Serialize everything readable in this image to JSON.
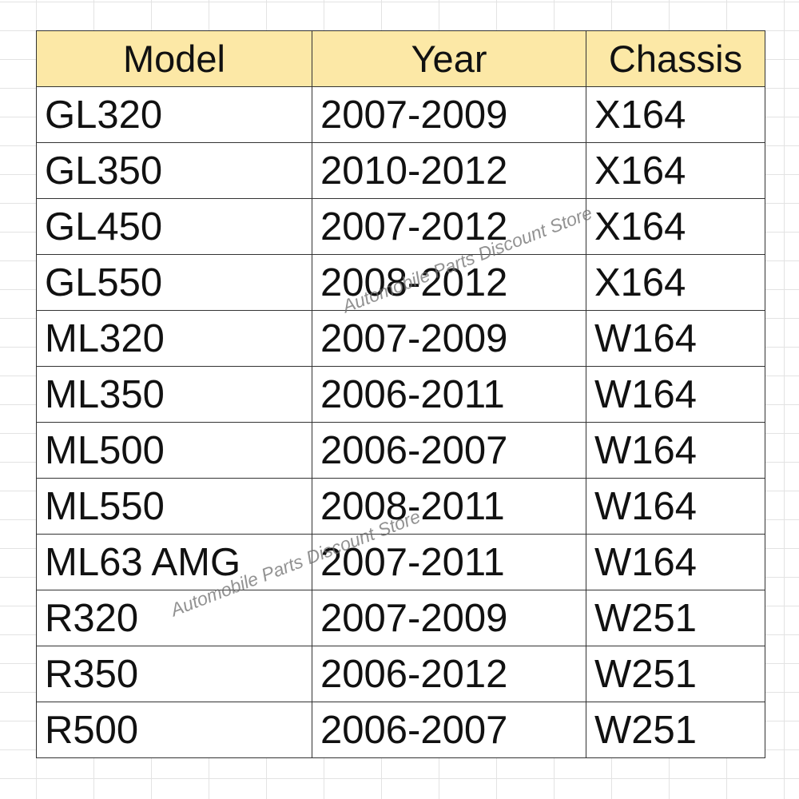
{
  "table": {
    "header": [
      "Model",
      "Year",
      "Chassis"
    ],
    "rows": [
      [
        "GL320",
        "2007-2009",
        "X164"
      ],
      [
        "GL350",
        "2010-2012",
        "X164"
      ],
      [
        "GL450",
        "2007-2012",
        "X164"
      ],
      [
        "GL550",
        "2008-2012",
        "X164"
      ],
      [
        "ML320",
        "2007-2009",
        "W164"
      ],
      [
        "ML350",
        "2006-2011",
        "W164"
      ],
      [
        "ML500",
        "2006-2007",
        "W164"
      ],
      [
        "ML550",
        "2008-2011",
        "W164"
      ],
      [
        "ML63 AMG",
        "2007-2011",
        "W164"
      ],
      [
        "R320",
        "2007-2009",
        "W251"
      ],
      [
        "R350",
        "2006-2012",
        "W251"
      ],
      [
        "R500",
        "2006-2007",
        "W251"
      ]
    ]
  },
  "watermarks": [
    "Automobile Parts Discount Store",
    "Automobile Parts Discount Store"
  ]
}
